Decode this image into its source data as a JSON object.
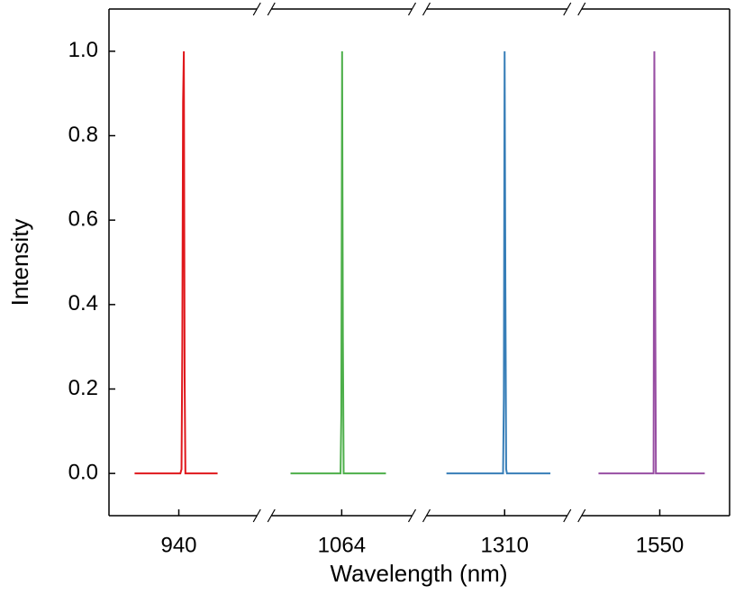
{
  "chart_data": {
    "type": "line",
    "xlabel": "Wavelength (nm)",
    "ylabel": "Intensity",
    "ylim": [
      -0.1,
      1.1
    ],
    "yticks": [
      {
        "value": 0,
        "label": "0.0"
      },
      0.2,
      0.4,
      0.6,
      0.8,
      {
        "value": 1,
        "label": "1.0"
      }
    ],
    "x_segments": [
      {
        "xlim": [
          931,
          951
        ],
        "xticks": [
          940
        ]
      },
      {
        "xlim": [
          1054,
          1074
        ],
        "xticks": [
          1064
        ]
      },
      {
        "xlim": [
          1299,
          1319
        ],
        "xticks": [
          1310
        ]
      },
      {
        "xlim": [
          1539,
          1559
        ],
        "xticks": [
          1550
        ]
      }
    ],
    "series": [
      {
        "color": "#e0181c",
        "x": [
          934.3,
          940.2,
          940.35,
          940.45,
          940.55,
          940.65,
          940.75,
          940.85,
          945.0
        ],
        "values": [
          0,
          0,
          0.01,
          0.3,
          0.88,
          1.0,
          0.23,
          0,
          0
        ]
      },
      {
        "color": "#4daf4a",
        "x": [
          1057.4,
          1063.85,
          1063.95,
          1064.05,
          1064.15,
          1064.25,
          1069.7
        ],
        "values": [
          0,
          0,
          0.14,
          1.0,
          0.33,
          0,
          0
        ]
      },
      {
        "color": "#377eb8",
        "x": [
          1302.5,
          1309.8,
          1309.9,
          1310.0,
          1310.1,
          1310.2,
          1310.3,
          1315.9
        ],
        "values": [
          0,
          0,
          0.18,
          1.0,
          0.44,
          0.01,
          0,
          0
        ]
      },
      {
        "color": "#984ea3",
        "x": [
          1542.1,
          1549.2,
          1549.3,
          1549.4,
          1549.5,
          1555.8
        ],
        "values": [
          0,
          0,
          1.0,
          0.49,
          0,
          0
        ]
      }
    ]
  }
}
